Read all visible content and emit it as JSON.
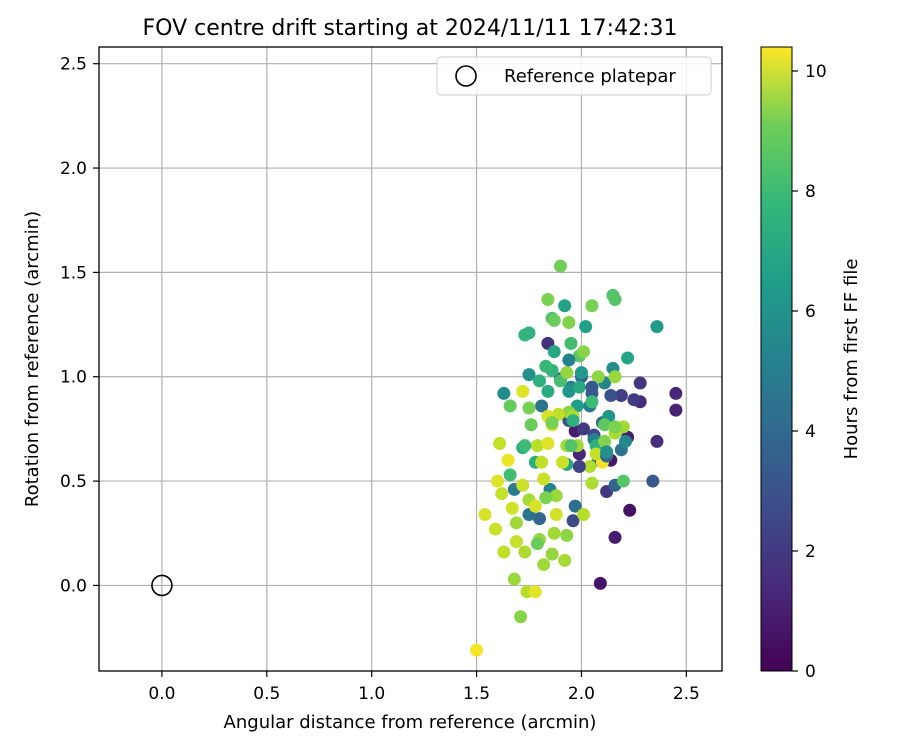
{
  "chart_data": {
    "type": "scatter",
    "title": "FOV centre drift starting at 2024/11/11 17:42:31",
    "xlabel": "Angular distance from reference (arcmin)",
    "ylabel": "Rotation from reference (arcmin)",
    "xlim": [
      -0.3,
      2.67
    ],
    "ylim": [
      -0.41,
      2.58
    ],
    "xticks": [
      0.0,
      0.5,
      1.0,
      1.5,
      2.0,
      2.5
    ],
    "yticks": [
      0.0,
      0.5,
      1.0,
      1.5,
      2.0,
      2.5
    ],
    "grid": true,
    "legend": {
      "position": "top-right",
      "entries": [
        {
          "label": "Reference platepar",
          "marker": "open-circle"
        }
      ]
    },
    "reference_point": {
      "x": 0.0,
      "y": 0.0
    },
    "colorbar": {
      "label": "Hours from first FF file",
      "colormap": "viridis",
      "range": [
        0,
        10.4
      ],
      "ticks": [
        0,
        2,
        4,
        6,
        8,
        10
      ]
    },
    "points": [
      [
        2.09,
        0.01,
        0.6
      ],
      [
        2.16,
        0.23,
        0.8
      ],
      [
        2.23,
        0.36,
        0.5
      ],
      [
        2.45,
        0.84,
        1.0
      ],
      [
        2.45,
        0.92,
        1.2
      ],
      [
        2.36,
        0.69,
        1.4
      ],
      [
        2.28,
        0.97,
        1.6
      ],
      [
        2.28,
        0.88,
        1.3
      ],
      [
        2.22,
        0.71,
        0.9
      ],
      [
        2.14,
        0.6,
        0.7
      ],
      [
        1.97,
        0.74,
        0.8
      ],
      [
        1.99,
        0.63,
        1.1
      ],
      [
        2.12,
        0.45,
        1.7
      ],
      [
        1.84,
        1.16,
        1.5
      ],
      [
        2.19,
        0.91,
        2.0
      ],
      [
        2.06,
        0.72,
        2.2
      ],
      [
        2.34,
        0.5,
        2.9
      ],
      [
        1.96,
        0.31,
        2.4
      ],
      [
        2.14,
        0.91,
        2.6
      ],
      [
        2.25,
        0.89,
        1.9
      ],
      [
        1.94,
        0.79,
        2.7
      ],
      [
        2.16,
        0.48,
        3.3
      ],
      [
        1.9,
        0.99,
        2.5
      ],
      [
        2.05,
        0.92,
        3.0
      ],
      [
        2.0,
        1.0,
        3.5
      ],
      [
        1.97,
        0.38,
        3.8
      ],
      [
        2.1,
        0.78,
        3.6
      ],
      [
        2.19,
        0.65,
        3.9
      ],
      [
        2.08,
        0.6,
        3.2
      ],
      [
        1.8,
        0.32,
        3.4
      ],
      [
        1.75,
        0.34,
        4.1
      ],
      [
        1.68,
        0.46,
        4.3
      ],
      [
        1.85,
        0.46,
        4.6
      ],
      [
        1.81,
        0.86,
        4.0
      ],
      [
        2.04,
        0.86,
        4.4
      ],
      [
        2.11,
        0.97,
        4.8
      ],
      [
        1.95,
        0.95,
        4.7
      ],
      [
        1.63,
        0.92,
        5.0
      ],
      [
        2.21,
        0.69,
        4.9
      ],
      [
        2.06,
        0.7,
        4.5
      ],
      [
        2.15,
        1.04,
        5.1
      ],
      [
        1.94,
        0.93,
        5.4
      ],
      [
        1.75,
        1.01,
        5.2
      ],
      [
        2.0,
        1.02,
        5.6
      ],
      [
        1.98,
        0.86,
        5.8
      ],
      [
        2.13,
        0.81,
        5.5
      ],
      [
        2.02,
        1.24,
        5.9
      ],
      [
        1.92,
        1.34,
        6.0
      ],
      [
        2.36,
        1.24,
        5.7
      ],
      [
        2.22,
        1.09,
        6.1
      ],
      [
        1.87,
        1.12,
        6.2
      ],
      [
        1.99,
        0.95,
        6.3
      ],
      [
        1.72,
        0.66,
        6.4
      ],
      [
        1.78,
        0.59,
        6.5
      ],
      [
        1.93,
        0.58,
        6.2
      ],
      [
        2.07,
        0.67,
        6.6
      ],
      [
        1.86,
        1.03,
        6.8
      ],
      [
        1.73,
        1.2,
        6.9
      ],
      [
        1.75,
        1.21,
        6.7
      ],
      [
        1.83,
        1.05,
        7.0
      ],
      [
        1.95,
        1.16,
        7.2
      ],
      [
        2.05,
        0.88,
        7.1
      ],
      [
        1.9,
        0.98,
        7.3
      ],
      [
        1.86,
        1.28,
        7.4
      ],
      [
        2.15,
        1.39,
        7.5
      ],
      [
        2.16,
        1.37,
        7.6
      ],
      [
        1.99,
        1.1,
        7.7
      ],
      [
        2.11,
        0.77,
        7.8
      ],
      [
        1.66,
        0.86,
        7.9
      ],
      [
        1.87,
        1.27,
        8.0
      ],
      [
        1.9,
        1.53,
        8.1
      ],
      [
        1.84,
        1.37,
        8.3
      ],
      [
        2.05,
        1.34,
        8.2
      ],
      [
        1.94,
        1.26,
        8.4
      ],
      [
        2.01,
        1.12,
        8.5
      ],
      [
        2.08,
        1.0,
        8.6
      ],
      [
        2.16,
        1.0,
        8.8
      ],
      [
        1.93,
        1.02,
        8.7
      ],
      [
        2.2,
        0.76,
        8.9
      ],
      [
        2.16,
        0.73,
        9.0
      ],
      [
        1.94,
        0.83,
        8.6
      ],
      [
        1.98,
        0.67,
        8.9
      ],
      [
        2.11,
        0.69,
        8.4
      ],
      [
        2.04,
        0.57,
        9.2
      ],
      [
        2.05,
        0.49,
        9.1
      ],
      [
        1.79,
        0.67,
        9.3
      ],
      [
        1.81,
        0.59,
        9.4
      ],
      [
        1.88,
        0.43,
        8.8
      ],
      [
        1.93,
        0.24,
        8.6
      ],
      [
        1.8,
        0.22,
        8.7
      ],
      [
        1.69,
        0.3,
        8.9
      ],
      [
        1.75,
        0.41,
        9.0
      ],
      [
        1.73,
        0.16,
        9.1
      ],
      [
        1.68,
        0.03,
        8.8
      ],
      [
        1.71,
        -0.15,
        8.5
      ],
      [
        1.82,
        0.1,
        8.9
      ],
      [
        1.74,
        -0.03,
        9.2
      ],
      [
        1.86,
        0.15,
        8.7
      ],
      [
        1.61,
        0.68,
        9.5
      ],
      [
        1.63,
        0.16,
        9.4
      ],
      [
        1.59,
        0.27,
        9.6
      ],
      [
        1.54,
        0.34,
        9.8
      ],
      [
        1.67,
        0.37,
        9.7
      ],
      [
        1.6,
        0.5,
        9.9
      ],
      [
        1.62,
        0.44,
        9.5
      ],
      [
        1.72,
        0.48,
        9.6
      ],
      [
        1.78,
        0.38,
        9.8
      ],
      [
        1.88,
        0.34,
        9.7
      ],
      [
        1.82,
        0.51,
        9.6
      ],
      [
        1.84,
        0.68,
        9.9
      ],
      [
        1.91,
        0.59,
        9.6
      ],
      [
        1.86,
        0.77,
        9.7
      ],
      [
        1.89,
        0.82,
        9.4
      ],
      [
        1.84,
        0.81,
        9.8
      ],
      [
        1.72,
        0.93,
        9.9
      ],
      [
        1.78,
        -0.03,
        10.0
      ],
      [
        1.5,
        -0.31,
        10.3
      ],
      [
        1.65,
        0.6,
        10.1
      ],
      [
        2.01,
        0.34,
        9.3
      ],
      [
        2.1,
        0.59,
        10.2
      ],
      [
        1.69,
        0.21,
        9.5
      ],
      [
        1.93,
        0.67,
        9.0
      ],
      [
        2.07,
        0.63,
        9.5
      ],
      [
        1.96,
        0.81,
        9.1
      ],
      [
        1.75,
        0.85,
        8.2
      ],
      [
        1.79,
        0.2,
        8.0
      ],
      [
        1.87,
        0.25,
        8.9
      ],
      [
        1.92,
        0.12,
        9.0
      ],
      [
        1.95,
        0.67,
        7.5
      ],
      [
        1.83,
        0.42,
        8.3
      ],
      [
        1.66,
        0.53,
        7.2
      ],
      [
        1.8,
        0.98,
        6.6
      ],
      [
        1.84,
        0.93,
        6.4
      ],
      [
        1.94,
        1.08,
        4.6
      ],
      [
        2.12,
        0.62,
        3.4
      ],
      [
        1.73,
        0.67,
        7.1
      ],
      [
        2.05,
        0.95,
        2.9
      ],
      [
        1.99,
        0.57,
        2.1
      ],
      [
        2.01,
        0.75,
        1.8
      ],
      [
        1.96,
        0.79,
        6.6
      ],
      [
        1.86,
        0.78,
        8.2
      ],
      [
        1.76,
        0.77,
        8.0
      ],
      [
        2.16,
        0.76,
        8.3
      ],
      [
        2.2,
        0.5,
        7.6
      ],
      [
        2.12,
        0.64,
        5.2
      ]
    ]
  }
}
